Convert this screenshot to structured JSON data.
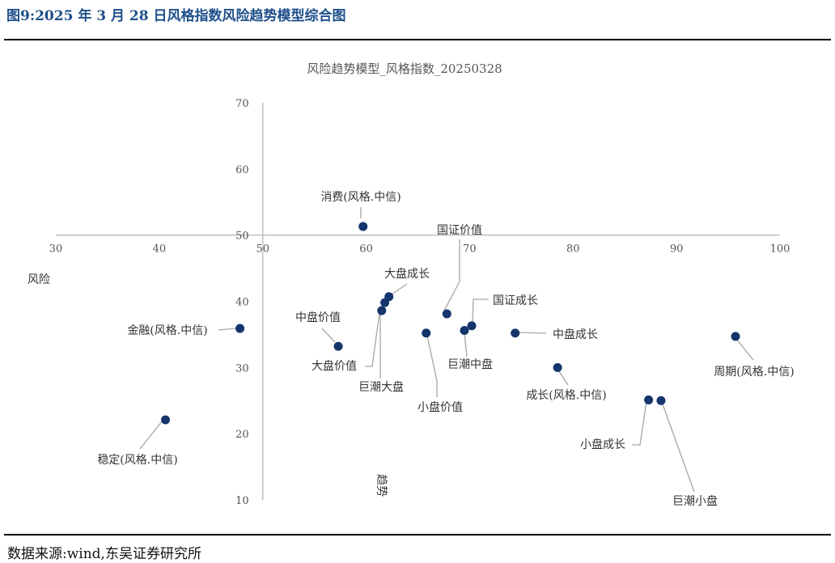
{
  "figure": {
    "title": "图9:2025 年 3 月 28 日风格指数风险趋势模型综合图",
    "source": "数据来源:wind,东吴证券研究所"
  },
  "colors": {
    "point": "#14346b",
    "axis": "#bfbfbf",
    "leader": "#a6a6a6",
    "title_accent": "#1e4f8a"
  },
  "chart_data": {
    "type": "scatter",
    "title": "风险趋势模型_风格指数_20250328",
    "xlabel": "趋势",
    "ylabel": "风险",
    "xlim": [
      30,
      100
    ],
    "ylim": [
      10,
      70
    ],
    "x_ticks": [
      30,
      40,
      50,
      60,
      70,
      80,
      90,
      100
    ],
    "y_ticks": [
      10,
      20,
      30,
      40,
      50,
      60,
      70
    ],
    "axes_cross": {
      "x": 50,
      "y": 50
    },
    "grid": false,
    "legend": "none",
    "points": [
      {
        "label": "消费(风格.中信)",
        "x": 59.7,
        "y": 51.3
      },
      {
        "label": "国证价值",
        "x": 67.8,
        "y": 38.1
      },
      {
        "label": "大盘成长",
        "x": 62.2,
        "y": 40.7
      },
      {
        "label": "国证成长",
        "x": 70.2,
        "y": 36.3
      },
      {
        "label": "中盘价值",
        "x": 57.3,
        "y": 33.2
      },
      {
        "label": "金融(风格.中信)",
        "x": 47.8,
        "y": 35.9
      },
      {
        "label": "中盘成长",
        "x": 74.4,
        "y": 35.2
      },
      {
        "label": "大盘价值",
        "x": 61.8,
        "y": 39.8
      },
      {
        "label": "巨潮大盘",
        "x": 61.5,
        "y": 38.6
      },
      {
        "label": "巨潮中盘",
        "x": 69.5,
        "y": 35.6
      },
      {
        "label": "小盘价值",
        "x": 65.8,
        "y": 35.2
      },
      {
        "label": "成长(风格.中信)",
        "x": 78.5,
        "y": 30.0
      },
      {
        "label": "周期(风格.中信)",
        "x": 95.7,
        "y": 34.7
      },
      {
        "label": "稳定(风格.中信)",
        "x": 40.6,
        "y": 22.1
      },
      {
        "label": "小盘成长",
        "x": 87.3,
        "y": 25.1
      },
      {
        "label": "巨潮小盘",
        "x": 88.5,
        "y": 25.0
      }
    ]
  }
}
